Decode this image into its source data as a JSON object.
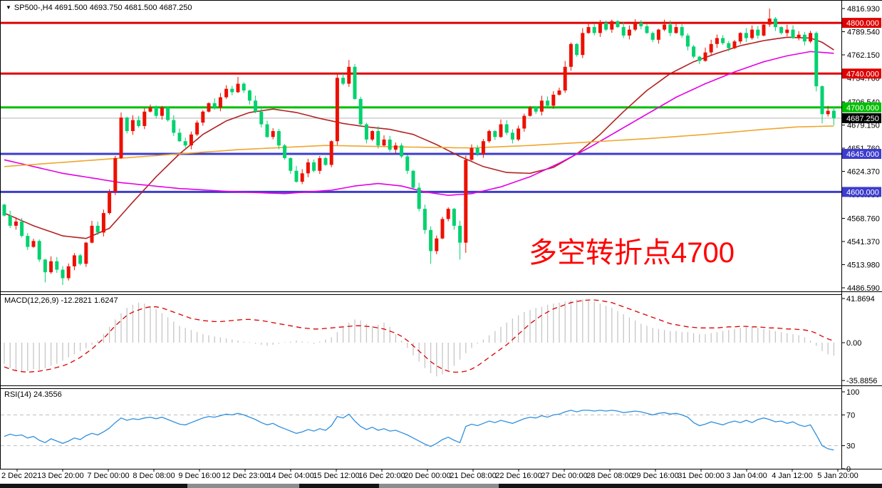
{
  "header": {
    "dropdown_icon": "▼",
    "symbol_line": "SP500-,H4  4691.500 4693.750 4681.500 4687.250"
  },
  "main_annotation": {
    "text": "多空转折点4700",
    "color": "#FF0000"
  },
  "chart_data": [
    {
      "type": "candlestick",
      "symbol": "SP500-",
      "timeframe": "H4",
      "ohlc_display": {
        "open": "4691.500",
        "high": "4693.750",
        "low": "4681.500",
        "close": "4687.250"
      },
      "ylim": [
        4486.59,
        4816.93
      ],
      "up_color": "#EC1000",
      "down_color": "#00D26F",
      "open0": 4585,
      "closes": [
        4572,
        4560,
        4565,
        4548,
        4535,
        4542,
        4520,
        4505,
        4518,
        4508,
        4498,
        4512,
        4525,
        4515,
        4540,
        4560,
        4552,
        4575,
        4600,
        4640,
        4688,
        4672,
        4685,
        4678,
        4695,
        4700,
        4690,
        4700,
        4685,
        4670,
        4660,
        4655,
        4668,
        4682,
        4695,
        4705,
        4700,
        4712,
        4722,
        4718,
        4728,
        4720,
        4708,
        4695,
        4680,
        4665,
        4672,
        4655,
        4640,
        4625,
        4612,
        4622,
        4635,
        4625,
        4640,
        4632,
        4660,
        4735,
        4728,
        4748,
        4710,
        4680,
        4662,
        4672,
        4655,
        4662,
        4650,
        4655,
        4642,
        4625,
        4605,
        4580,
        4555,
        4530,
        4545,
        4568,
        4580,
        4560,
        4540,
        4638,
        4652,
        4645,
        4660,
        4672,
        4665,
        4680,
        4670,
        4662,
        4675,
        4690,
        4700,
        4695,
        4708,
        4702,
        4715,
        4720,
        4748,
        4775,
        4762,
        4788,
        4795,
        4788,
        4800,
        4792,
        4802,
        4795,
        4785,
        4792,
        4800,
        4796,
        4788,
        4780,
        4792,
        4798,
        4788,
        4795,
        4785,
        4772,
        4760,
        4755,
        4765,
        4775,
        4782,
        4776,
        4770,
        4778,
        4788,
        4782,
        4792,
        4785,
        4798,
        4805,
        4795,
        4788,
        4792,
        4782,
        4786,
        4778,
        4788,
        4725,
        4692,
        4696,
        4687.25
      ],
      "wick_overrides": {
        "7": {
          "low": 4493
        },
        "10": {
          "low": 4490
        },
        "20": {
          "high": 4694
        },
        "40": {
          "high": 4736
        },
        "57": {
          "high": 4741
        },
        "59": {
          "high": 4756
        },
        "73": {
          "low": 4515
        },
        "78": {
          "low": 4520
        },
        "79": {
          "low": 4528
        },
        "96": {
          "high": 4755
        },
        "131": {
          "high": 4816.9
        },
        "139": {
          "low": 4719
        },
        "140": {
          "low": 4681
        },
        "142": {
          "low": 4679
        }
      },
      "levels": [
        {
          "price": 4800.0,
          "label": "4800.000",
          "color": "#DE0000"
        },
        {
          "price": 4740.0,
          "label": "4740.000",
          "color": "#DE0000"
        },
        {
          "price": 4700.0,
          "label": "4700.000",
          "color": "#00BE00"
        },
        {
          "price": 4645.0,
          "label": "4645.000",
          "color": "#3C3CCD"
        },
        {
          "price": 4600.0,
          "label": "4600.000",
          "color": "#3C3CCD"
        }
      ],
      "current_price": {
        "value": 4687.25,
        "label": "4687.250",
        "line_color": "#B4B4B4",
        "badge_bg": "#000000"
      },
      "y_ticks": [
        {
          "price": 4816.93,
          "label": "4816.930"
        },
        {
          "price": 4789.54,
          "label": "4789.540"
        },
        {
          "price": 4762.15,
          "label": "4762.150"
        },
        {
          "price": 4734.76,
          "label": "4734.760"
        },
        {
          "price": 4706.54,
          "label": "4706.540"
        },
        {
          "price": 4679.15,
          "label": "4679.150"
        },
        {
          "price": 4651.76,
          "label": "4651.760"
        },
        {
          "price": 4624.37,
          "label": "4624.370"
        },
        {
          "price": 4596.98,
          "label": "4596.980"
        },
        {
          "price": 4568.76,
          "label": "4568.760"
        },
        {
          "price": 4541.37,
          "label": "4541.370"
        },
        {
          "price": 4513.98,
          "label": "4513.980"
        },
        {
          "price": 4486.59,
          "label": "4486.590"
        }
      ],
      "x_labels": [
        "2 Dec 2021",
        "3 Dec 20:00",
        "7 Dec 00:00",
        "8 Dec 08:00",
        "9 Dec 16:00",
        "12 Dec 23:00",
        "14 Dec 04:00",
        "15 Dec 12:00",
        "16 Dec 20:00",
        "20 Dec 00:00",
        "21 Dec 08:00",
        "22 Dec 16:00",
        "27 Dec 00:00",
        "28 Dec 08:00",
        "29 Dec 16:00",
        "31 Dec 00:00",
        "3 Jan 04:00",
        "4 Jan 12:00",
        "5 Jan 20:00"
      ],
      "ma_lines": [
        {
          "name": "ma-fast-darkred",
          "color": "#B22222",
          "anchors": [
            [
              0,
              4575
            ],
            [
              5,
              4560
            ],
            [
              10,
              4548
            ],
            [
              14,
              4545
            ],
            [
              18,
              4557
            ],
            [
              22,
              4588
            ],
            [
              26,
              4618
            ],
            [
              30,
              4645
            ],
            [
              34,
              4668
            ],
            [
              38,
              4684
            ],
            [
              42,
              4694
            ],
            [
              46,
              4698
            ],
            [
              50,
              4694
            ],
            [
              54,
              4687
            ],
            [
              58,
              4681
            ],
            [
              62,
              4677
            ],
            [
              66,
              4674
            ],
            [
              70,
              4668
            ],
            [
              74,
              4656
            ],
            [
              78,
              4642
            ],
            [
              82,
              4630
            ],
            [
              86,
              4623
            ],
            [
              90,
              4622
            ],
            [
              94,
              4629
            ],
            [
              98,
              4645
            ],
            [
              102,
              4668
            ],
            [
              106,
              4695
            ],
            [
              110,
              4720
            ],
            [
              114,
              4740
            ],
            [
              118,
              4754
            ],
            [
              122,
              4764
            ],
            [
              126,
              4773
            ],
            [
              130,
              4779
            ],
            [
              134,
              4783
            ],
            [
              138,
              4782
            ],
            [
              140,
              4777
            ],
            [
              142,
              4768
            ]
          ]
        },
        {
          "name": "ma-mid-magenta",
          "color": "#E400E4",
          "anchors": [
            [
              0,
              4638
            ],
            [
              10,
              4622
            ],
            [
              20,
              4611
            ],
            [
              30,
              4604
            ],
            [
              40,
              4600
            ],
            [
              48,
              4598
            ],
            [
              56,
              4602
            ],
            [
              60,
              4607
            ],
            [
              64,
              4610
            ],
            [
              68,
              4607
            ],
            [
              72,
              4600
            ],
            [
              76,
              4596
            ],
            [
              80,
              4598
            ],
            [
              85,
              4606
            ],
            [
              90,
              4618
            ],
            [
              95,
              4634
            ],
            [
              100,
              4652
            ],
            [
              105,
              4672
            ],
            [
              110,
              4692
            ],
            [
              115,
              4712
            ],
            [
              120,
              4728
            ],
            [
              125,
              4742
            ],
            [
              130,
              4754
            ],
            [
              134,
              4761
            ],
            [
              138,
              4766
            ],
            [
              142,
              4764
            ]
          ]
        },
        {
          "name": "ma-slow-orange",
          "color": "#EFA62C",
          "anchors": [
            [
              0,
              4630
            ],
            [
              20,
              4640
            ],
            [
              40,
              4650
            ],
            [
              55,
              4655
            ],
            [
              70,
              4653
            ],
            [
              80,
              4652
            ],
            [
              90,
              4655
            ],
            [
              100,
              4659
            ],
            [
              110,
              4663
            ],
            [
              120,
              4668
            ],
            [
              130,
              4674
            ],
            [
              136,
              4677
            ],
            [
              142,
              4678
            ]
          ]
        }
      ]
    },
    {
      "type": "macd",
      "label": "MACD(12,26,9) -12.2821 1.6247",
      "hist_color": "#C6C6C6",
      "signal_color": "#DB0000",
      "y_ticks": [
        {
          "value": 41.8694,
          "label": "41.8694"
        },
        {
          "value": 0,
          "label": "0.00"
        },
        {
          "value": -35.8856,
          "label": "-35.8856"
        }
      ],
      "histogram": [
        -20,
        -24,
        -27,
        -28,
        -27,
        -25,
        -26,
        -24,
        -22,
        -20,
        -17,
        -14,
        -11,
        -8,
        -5,
        -2,
        2,
        8,
        15,
        22,
        28,
        33,
        36,
        38,
        37,
        35,
        32,
        28,
        24,
        20,
        16,
        14,
        12,
        10,
        8,
        7,
        6,
        5,
        4,
        3,
        2,
        1,
        0.5,
        -1,
        -2,
        -3,
        -2,
        -1,
        0.5,
        1,
        2,
        1,
        0.5,
        -1,
        1,
        3,
        5,
        10,
        15,
        19,
        22,
        21,
        18,
        16,
        17,
        19,
        15,
        8,
        2,
        -5,
        -12,
        -18,
        -24,
        -29,
        -32,
        -30,
        -26,
        -22,
        -16,
        -10,
        -5,
        -1,
        3,
        7,
        11,
        15,
        19,
        23,
        26,
        29,
        31,
        33,
        34,
        36,
        37,
        38,
        39,
        40,
        41,
        41,
        40,
        39,
        37,
        35,
        33,
        30,
        27,
        24,
        21,
        18,
        16,
        14,
        13,
        12,
        11,
        11,
        10,
        10,
        9,
        8,
        8,
        9,
        10,
        11,
        12,
        13,
        14,
        15,
        15,
        14,
        13,
        12,
        11,
        10,
        9,
        8,
        7,
        5,
        2,
        -3,
        -8,
        -11,
        -12.2821
      ],
      "signal": [
        -23,
        -25,
        -26.5,
        -27.5,
        -28,
        -27.5,
        -27,
        -26,
        -25,
        -23.5,
        -22,
        -20,
        -17,
        -14,
        -10,
        -6,
        -1,
        4,
        10,
        16,
        21,
        26,
        29,
        31,
        33,
        34,
        34,
        33,
        31,
        29,
        27,
        25,
        23,
        22,
        21,
        20.5,
        20,
        20,
        20.5,
        21,
        21.5,
        22,
        22,
        21.5,
        21,
        20,
        19,
        18,
        17,
        16,
        15,
        14,
        13.5,
        13,
        13,
        13.5,
        14,
        14.5,
        15,
        15.5,
        16,
        16,
        15.5,
        15,
        14,
        13,
        11,
        9,
        6,
        2,
        -3,
        -8,
        -13,
        -18,
        -22,
        -25,
        -27,
        -28,
        -28,
        -27,
        -25,
        -22,
        -18,
        -14,
        -10,
        -6,
        -2,
        3,
        8,
        13,
        18,
        22,
        26,
        29,
        32,
        34,
        36,
        38,
        39,
        40,
        40.5,
        40.5,
        40,
        39,
        38,
        36,
        34,
        32,
        30,
        28,
        26,
        24,
        22,
        20,
        18,
        17,
        16,
        15,
        14.5,
        14,
        14,
        14,
        14,
        14.5,
        15,
        15,
        15.5,
        15.5,
        15,
        15,
        14.5,
        14,
        14,
        13.5,
        13,
        13,
        12.5,
        12,
        11,
        9,
        6,
        3.5,
        1.6247
      ]
    },
    {
      "type": "rsi",
      "label": "RSI(14) 24.3556",
      "line_color": "#2F8FDE",
      "level_line_color": "#BDBDBD",
      "levels": [
        70,
        30
      ],
      "y_ticks": [
        {
          "value": 100,
          "label": "100"
        },
        {
          "value": 70,
          "label": "70"
        },
        {
          "value": 30,
          "label": "30"
        },
        {
          "value": 0,
          "label": "0"
        }
      ],
      "values": [
        42,
        45,
        43,
        44,
        40,
        42,
        37,
        34,
        39,
        36,
        33,
        36,
        40,
        38,
        43,
        46,
        44,
        48,
        53,
        60,
        66,
        63,
        65,
        64,
        66,
        67,
        65,
        67,
        64,
        61,
        58,
        57,
        60,
        63,
        66,
        68,
        67,
        69,
        71,
        70,
        72,
        70,
        67,
        64,
        60,
        57,
        59,
        55,
        52,
        49,
        46,
        48,
        51,
        49,
        52,
        50,
        56,
        68,
        66,
        71,
        62,
        55,
        51,
        54,
        50,
        52,
        49,
        50,
        47,
        44,
        40,
        36,
        32,
        29,
        33,
        38,
        41,
        37,
        34,
        55,
        58,
        56,
        59,
        62,
        60,
        63,
        61,
        59,
        62,
        65,
        67,
        66,
        69,
        67,
        70,
        71,
        74,
        76,
        74,
        76,
        76,
        75,
        76,
        75,
        76,
        75,
        73,
        74,
        75,
        74,
        72,
        70,
        72,
        73,
        71,
        72,
        70,
        67,
        60,
        56,
        58,
        61,
        59,
        57,
        60,
        62,
        60,
        63,
        60,
        64,
        66,
        64,
        61,
        62,
        59,
        61,
        57,
        55,
        57,
        44,
        30,
        26,
        24.3556
      ]
    }
  ]
}
